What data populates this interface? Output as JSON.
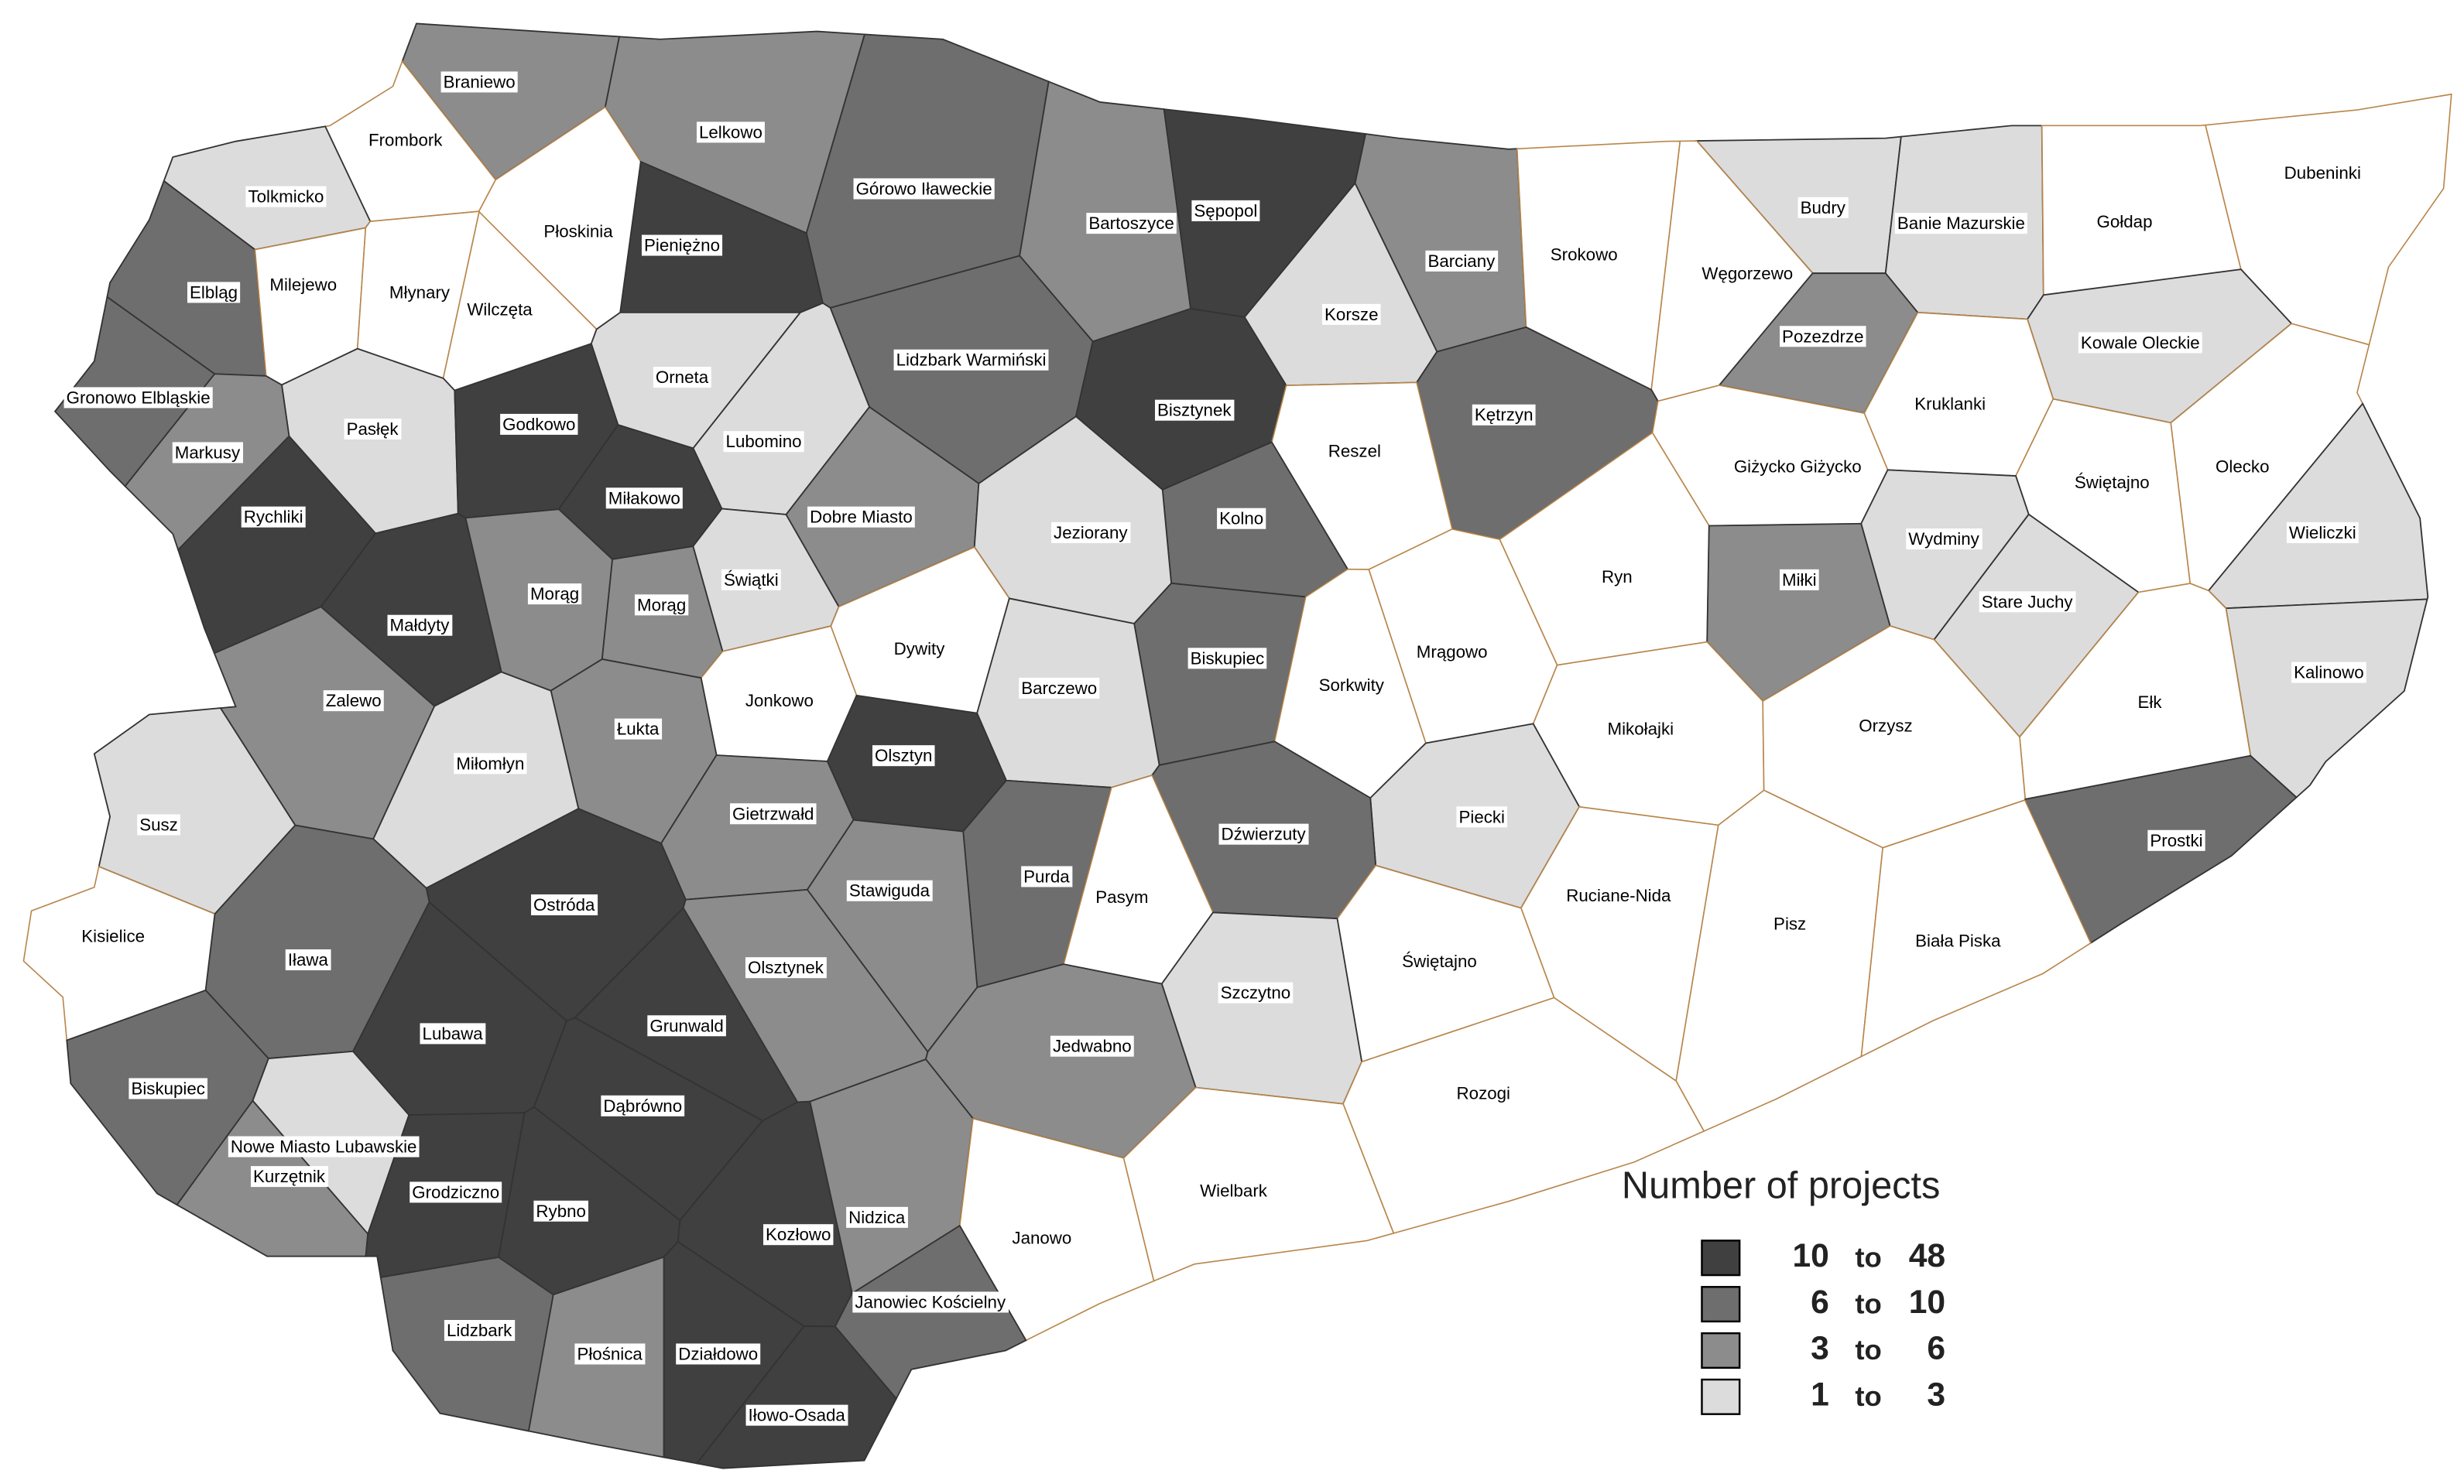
{
  "map": {
    "regions": [
      {
        "name": "Braniewo",
        "fill": "#8c8c8c"
      },
      {
        "name": "Lelkowo",
        "fill": "#8c8c8c"
      },
      {
        "name": "Frombork",
        "fill": "#ffffff"
      },
      {
        "name": "Tolkmicko",
        "fill": "#dcdcdc"
      },
      {
        "name": "Płoskinia",
        "fill": "#ffffff"
      },
      {
        "name": "Pieniężno",
        "fill": "#404040"
      },
      {
        "name": "Górowo Iławeckie",
        "fill": "#6e6e6e"
      },
      {
        "name": "Bartoszyce",
        "fill": "#8c8c8c"
      },
      {
        "name": "Sępopol",
        "fill": "#404040"
      },
      {
        "name": "Barciany",
        "fill": "#8c8c8c"
      },
      {
        "name": "Srokowo",
        "fill": "#ffffff"
      },
      {
        "name": "Budry",
        "fill": "#dcdcdc"
      },
      {
        "name": "Banie Mazurskie",
        "fill": "#dcdcdc"
      },
      {
        "name": "Gołdap",
        "fill": "#ffffff"
      },
      {
        "name": "Dubeninki",
        "fill": "#ffffff"
      },
      {
        "name": "Elbląg",
        "fill": "#6e6e6e"
      },
      {
        "name": "Milejewo",
        "fill": "#ffffff"
      },
      {
        "name": "Młynary",
        "fill": "#ffffff"
      },
      {
        "name": "Wilczęta",
        "fill": "#ffffff"
      },
      {
        "name": "Węgorzewo",
        "fill": "#ffffff"
      },
      {
        "name": "Pozezdrze",
        "fill": "#8c8c8c"
      },
      {
        "name": "Kowale Oleckie",
        "fill": "#dcdcdc"
      },
      {
        "name": "Korsze",
        "fill": "#dcdcdc"
      },
      {
        "name": "Lidzbark Warmiński",
        "fill": "#6e6e6e"
      },
      {
        "name": "Orneta",
        "fill": "#dcdcdc"
      },
      {
        "name": "Gronowo Elbląskie",
        "fill": "#6e6e6e"
      },
      {
        "name": "Pasłęk",
        "fill": "#dcdcdc"
      },
      {
        "name": "Godkowo",
        "fill": "#404040"
      },
      {
        "name": "Bisztynek",
        "fill": "#404040"
      },
      {
        "name": "Kętrzyn",
        "fill": "#6e6e6e"
      },
      {
        "name": "Kruklanki",
        "fill": "#ffffff"
      },
      {
        "name": "Lubomino",
        "fill": "#dcdcdc"
      },
      {
        "name": "Reszel",
        "fill": "#ffffff"
      },
      {
        "name": "Markusy",
        "fill": "#8c8c8c"
      },
      {
        "name": "Giżycko Giżycko",
        "fill": "#ffffff"
      },
      {
        "name": "Świętajno",
        "fill": "#ffffff"
      },
      {
        "name": "Olecko",
        "fill": "#ffffff"
      },
      {
        "name": "Miłakowo",
        "fill": "#404040"
      },
      {
        "name": "Rychliki",
        "fill": "#404040"
      },
      {
        "name": "Dobre Miasto",
        "fill": "#8c8c8c"
      },
      {
        "name": "Kolno",
        "fill": "#6e6e6e"
      },
      {
        "name": "Jeziorany",
        "fill": "#dcdcdc"
      },
      {
        "name": "Wydminy",
        "fill": "#dcdcdc"
      },
      {
        "name": "Wieliczki",
        "fill": "#dcdcdc"
      },
      {
        "name": "Ryn",
        "fill": "#ffffff"
      },
      {
        "name": "Świątki",
        "fill": "#dcdcdc"
      },
      {
        "name": "Miłki",
        "fill": "#8c8c8c"
      },
      {
        "name": "Morąg",
        "fill": "#8c8c8c"
      },
      {
        "name": "Morąg",
        "fill": "#8c8c8c"
      },
      {
        "name": "Stare Juchy",
        "fill": "#dcdcdc"
      },
      {
        "name": "Małdyty",
        "fill": "#404040"
      },
      {
        "name": "Dywity",
        "fill": "#ffffff"
      },
      {
        "name": "Mrągowo",
        "fill": "#ffffff"
      },
      {
        "name": "Biskupiec",
        "fill": "#6e6e6e"
      },
      {
        "name": "Kalinowo",
        "fill": "#dcdcdc"
      },
      {
        "name": "Barczewo",
        "fill": "#dcdcdc"
      },
      {
        "name": "Sorkwity",
        "fill": "#ffffff"
      },
      {
        "name": "Jonkowo",
        "fill": "#ffffff"
      },
      {
        "name": "Zalewo",
        "fill": "#8c8c8c"
      },
      {
        "name": "Ełk",
        "fill": "#ffffff"
      },
      {
        "name": "Mikołajki",
        "fill": "#ffffff"
      },
      {
        "name": "Orzysz",
        "fill": "#ffffff"
      },
      {
        "name": "Łukta",
        "fill": "#8c8c8c"
      },
      {
        "name": "Miłomłyn",
        "fill": "#dcdcdc"
      },
      {
        "name": "Olsztyn",
        "fill": "#404040"
      },
      {
        "name": "Gietrzwałd",
        "fill": "#8c8c8c"
      },
      {
        "name": "Piecki",
        "fill": "#dcdcdc"
      },
      {
        "name": "Susz",
        "fill": "#dcdcdc"
      },
      {
        "name": "Dźwierzuty",
        "fill": "#6e6e6e"
      },
      {
        "name": "Prostki",
        "fill": "#6e6e6e"
      },
      {
        "name": "Purda",
        "fill": "#6e6e6e"
      },
      {
        "name": "Stawiguda",
        "fill": "#8c8c8c"
      },
      {
        "name": "Pasym",
        "fill": "#ffffff"
      },
      {
        "name": "Ruciane-Nida",
        "fill": "#ffffff"
      },
      {
        "name": "Ostróda",
        "fill": "#404040"
      },
      {
        "name": "Pisz",
        "fill": "#ffffff"
      },
      {
        "name": "Kisielice",
        "fill": "#ffffff"
      },
      {
        "name": "Biała Piska",
        "fill": "#ffffff"
      },
      {
        "name": "Iława",
        "fill": "#6e6e6e"
      },
      {
        "name": "Świętajno",
        "fill": "#ffffff"
      },
      {
        "name": "Olsztynek",
        "fill": "#8c8c8c"
      },
      {
        "name": "Szczytno",
        "fill": "#dcdcdc"
      },
      {
        "name": "Grunwald",
        "fill": "#404040"
      },
      {
        "name": "Lubawa",
        "fill": "#404040"
      },
      {
        "name": "Jedwabno",
        "fill": "#8c8c8c"
      },
      {
        "name": "Biskupiec",
        "fill": "#6e6e6e"
      },
      {
        "name": "Rozogi",
        "fill": "#ffffff"
      },
      {
        "name": "Dąbrówno",
        "fill": "#404040"
      },
      {
        "name": "Nowe Miasto Lubawskie",
        "fill": "#dcdcdc"
      },
      {
        "name": "Kurzętnik",
        "fill": "#8c8c8c"
      },
      {
        "name": "Grodziczno",
        "fill": "#404040"
      },
      {
        "name": "Wielbark",
        "fill": "#ffffff"
      },
      {
        "name": "Rybno",
        "fill": "#404040"
      },
      {
        "name": "Nidzica",
        "fill": "#8c8c8c"
      },
      {
        "name": "Kozłowo",
        "fill": "#404040"
      },
      {
        "name": "Janowo",
        "fill": "#ffffff"
      },
      {
        "name": "Janowiec Kościelny",
        "fill": "#6e6e6e"
      },
      {
        "name": "Lidzbark",
        "fill": "#6e6e6e"
      },
      {
        "name": "Płośnica",
        "fill": "#8c8c8c"
      },
      {
        "name": "Działdowo",
        "fill": "#404040"
      },
      {
        "name": "Iłowo-Osada",
        "fill": "#404040"
      }
    ],
    "legend": {
      "title": "Number of projects",
      "connector": "to",
      "items": [
        {
          "min": 10,
          "max": 48,
          "color": "#404040"
        },
        {
          "min": 6,
          "max": 10,
          "color": "#6e6e6e"
        },
        {
          "min": 3,
          "max": 6,
          "color": "#8c8c8c"
        },
        {
          "min": 1,
          "max": 3,
          "color": "#dcdcdc"
        }
      ]
    }
  }
}
